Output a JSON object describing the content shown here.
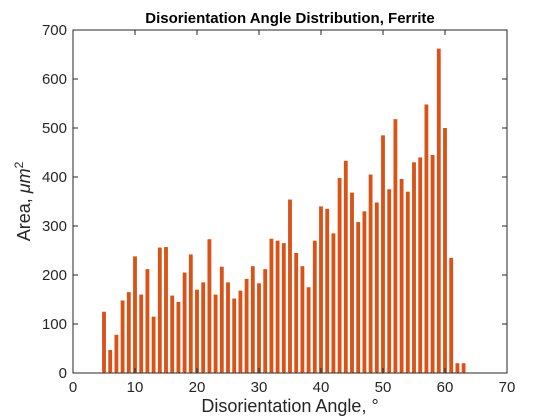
{
  "chart_data": {
    "type": "bar",
    "title": "Disorientation Angle Distribution, Ferrite",
    "xlabel": "Disorientation Angle, °",
    "ylabel_prefix": "Area, ",
    "ylabel_unit_base": "μm",
    "ylabel_unit_exp": "2",
    "xlim": [
      0,
      70
    ],
    "ylim": [
      0,
      700
    ],
    "xticks": [
      0,
      10,
      20,
      30,
      40,
      50,
      60,
      70
    ],
    "yticks": [
      0,
      100,
      200,
      300,
      400,
      500,
      600,
      700
    ],
    "bar_color": "#D95319",
    "grid": false,
    "x": [
      5,
      6,
      7,
      8,
      9,
      10,
      11,
      12,
      13,
      14,
      15,
      16,
      17,
      18,
      19,
      20,
      21,
      22,
      23,
      24,
      25,
      26,
      27,
      28,
      29,
      30,
      31,
      32,
      33,
      34,
      35,
      36,
      37,
      38,
      39,
      40,
      41,
      42,
      43,
      44,
      45,
      46,
      47,
      48,
      49,
      50,
      51,
      52,
      53,
      54,
      55,
      56,
      57,
      58,
      59,
      60,
      61,
      62,
      63
    ],
    "values": [
      125,
      47,
      78,
      148,
      165,
      238,
      160,
      212,
      115,
      256,
      257,
      158,
      145,
      205,
      242,
      170,
      185,
      273,
      160,
      217,
      185,
      152,
      168,
      192,
      218,
      183,
      212,
      274,
      270,
      265,
      354,
      245,
      218,
      175,
      270,
      340,
      335,
      285,
      398,
      433,
      368,
      308,
      330,
      405,
      348,
      485,
      375,
      518,
      396,
      370,
      430,
      440,
      548,
      445,
      662,
      500,
      235,
      20,
      20
    ]
  }
}
